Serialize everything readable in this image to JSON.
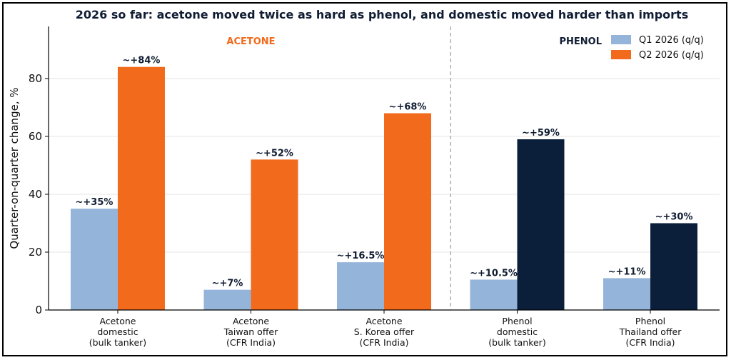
{
  "chart_data": {
    "type": "bar",
    "title": "2026 so far: acetone moved twice as hard as phenol, and domestic moved harder than imports",
    "ylabel": "Quarter-on-quarter change, %",
    "xlabel": "",
    "ylim": [
      0,
      98
    ],
    "yticks": [
      0,
      20,
      40,
      60,
      80
    ],
    "grid": "horizontal",
    "legend_position": "top-right",
    "categories": [
      [
        "Acetone",
        "domestic",
        "(bulk tanker)"
      ],
      [
        "Acetone",
        "Taiwan offer",
        "(CFR India)"
      ],
      [
        "Acetone",
        "S. Korea offer",
        "(CFR India)"
      ],
      [
        "Phenol",
        "domestic",
        "(bulk tanker)"
      ],
      [
        "Phenol",
        "Thailand offer",
        "(CFR India)"
      ]
    ],
    "series": [
      {
        "name": "Q1 2026 (q/q)",
        "values": [
          35,
          7,
          16.5,
          10.5,
          11
        ],
        "labels": [
          "~+35%",
          "~+7%",
          "~+16.5%",
          "~+10.5%",
          "~+11%"
        ],
        "colors": [
          "#94b4da",
          "#94b4da",
          "#94b4da",
          "#94b4da",
          "#94b4da"
        ]
      },
      {
        "name": "Q2 2026 (q/q)",
        "values": [
          84,
          52,
          68,
          59,
          30
        ],
        "labels": [
          "~+84%",
          "~+52%",
          "~+68%",
          "~+59%",
          "~+30%"
        ],
        "colors": [
          "#f26b1d",
          "#f26b1d",
          "#f26b1d",
          "#0b1f3a",
          "#0b1f3a"
        ]
      }
    ],
    "sections": [
      {
        "label": "ACETONE",
        "color": "#f26b1d",
        "categories": [
          0,
          1,
          2
        ]
      },
      {
        "label": "PHENOL",
        "color": "#111d33",
        "categories": [
          3,
          4
        ]
      }
    ],
    "legend_colors": [
      "#94b4da",
      "#f26b1d"
    ]
  }
}
